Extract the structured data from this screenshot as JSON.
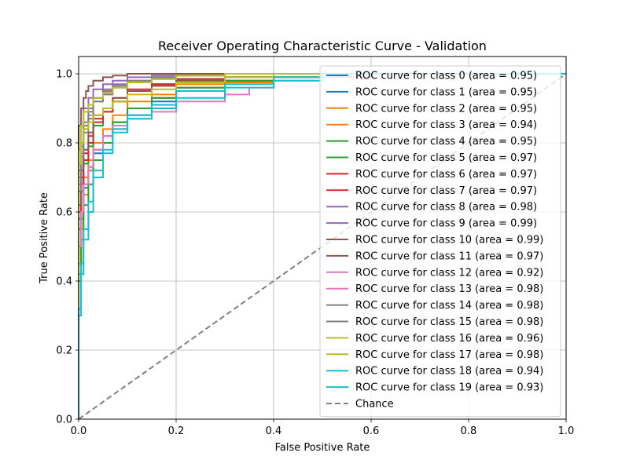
{
  "chart_data": {
    "type": "line",
    "title": "Receiver Operating Characteristic Curve - Validation",
    "xlabel": "False Positive Rate",
    "ylabel": "True Positive Rate",
    "xlim": [
      0.0,
      1.0
    ],
    "ylim": [
      0.0,
      1.05
    ],
    "x_ticks": [
      "0.0",
      "0.2",
      "0.4",
      "0.6",
      "0.8",
      "1.0"
    ],
    "y_ticks": [
      "0.0",
      "0.2",
      "0.4",
      "0.6",
      "0.8",
      "1.0"
    ],
    "grid": true,
    "legend_position": "top-right",
    "series": [
      {
        "name": "ROC curve for class 0 (area = 0.95)",
        "color": "#1f77b4",
        "dash": false,
        "x": [
          0,
          0,
          0.005,
          0.01,
          0.02,
          0.03,
          0.05,
          0.07,
          0.1,
          0.15,
          0.2,
          0.3,
          0.4,
          0.5,
          0.7,
          1.0
        ],
        "y": [
          0,
          0.3,
          0.5,
          0.6,
          0.68,
          0.73,
          0.78,
          0.82,
          0.86,
          0.9,
          0.93,
          0.96,
          0.98,
          0.99,
          1.0,
          1.0
        ]
      },
      {
        "name": "ROC curve for class 1 (area = 0.95)",
        "color": "#1f77b4",
        "dash": false,
        "x": [
          0,
          0,
          0.005,
          0.01,
          0.02,
          0.03,
          0.05,
          0.07,
          0.1,
          0.15,
          0.2,
          0.3,
          0.4,
          0.5,
          0.7,
          1.0
        ],
        "y": [
          0,
          0.25,
          0.45,
          0.58,
          0.67,
          0.72,
          0.77,
          0.8,
          0.84,
          0.88,
          0.92,
          0.96,
          0.98,
          0.99,
          1.0,
          1.0
        ]
      },
      {
        "name": "ROC curve for class 2 (area = 0.95)",
        "color": "#ff7f0e",
        "dash": false,
        "x": [
          0,
          0,
          0.005,
          0.01,
          0.02,
          0.03,
          0.05,
          0.07,
          0.1,
          0.15,
          0.2,
          0.3,
          0.4,
          0.5,
          0.7,
          1.0
        ],
        "y": [
          0,
          0.2,
          0.45,
          0.6,
          0.7,
          0.75,
          0.8,
          0.84,
          0.88,
          0.92,
          0.94,
          0.97,
          0.98,
          0.99,
          1.0,
          1.0
        ]
      },
      {
        "name": "ROC curve for class 3 (area = 0.94)",
        "color": "#ff7f0e",
        "dash": false,
        "x": [
          0,
          0,
          0.005,
          0.01,
          0.02,
          0.03,
          0.05,
          0.07,
          0.1,
          0.15,
          0.2,
          0.3,
          0.4,
          0.5,
          0.7,
          1.0
        ],
        "y": [
          0,
          0.18,
          0.42,
          0.55,
          0.65,
          0.72,
          0.78,
          0.82,
          0.86,
          0.9,
          0.93,
          0.96,
          0.975,
          0.99,
          1.0,
          1.0
        ]
      },
      {
        "name": "ROC curve for class 4 (area = 0.95)",
        "color": "#2ca02c",
        "dash": false,
        "x": [
          0,
          0,
          0.005,
          0.01,
          0.02,
          0.03,
          0.05,
          0.07,
          0.1,
          0.15,
          0.2,
          0.3,
          0.4,
          0.5,
          0.7,
          1.0
        ],
        "y": [
          0,
          0.22,
          0.4,
          0.52,
          0.62,
          0.68,
          0.75,
          0.8,
          0.86,
          0.9,
          0.93,
          0.96,
          0.98,
          0.99,
          1.0,
          1.0
        ]
      },
      {
        "name": "ROC curve for class 5 (area = 0.97)",
        "color": "#2ca02c",
        "dash": false,
        "x": [
          0,
          0,
          0.005,
          0.01,
          0.02,
          0.03,
          0.05,
          0.07,
          0.1,
          0.15,
          0.2,
          0.3,
          0.4,
          0.5,
          0.7,
          1.0
        ],
        "y": [
          0,
          0.35,
          0.55,
          0.66,
          0.74,
          0.79,
          0.85,
          0.89,
          0.92,
          0.95,
          0.97,
          0.985,
          0.99,
          1.0,
          1.0,
          1.0
        ]
      },
      {
        "name": "ROC curve for class 6 (area = 0.97)",
        "color": "#d62728",
        "dash": false,
        "x": [
          0,
          0,
          0.005,
          0.01,
          0.02,
          0.03,
          0.05,
          0.07,
          0.1,
          0.15,
          0.2,
          0.3,
          0.4,
          0.5,
          0.7,
          1.0
        ],
        "y": [
          0,
          0.4,
          0.6,
          0.7,
          0.77,
          0.82,
          0.87,
          0.9,
          0.93,
          0.955,
          0.97,
          0.985,
          0.99,
          1.0,
          1.0,
          1.0
        ]
      },
      {
        "name": "ROC curve for class 7 (area = 0.97)",
        "color": "#d62728",
        "dash": false,
        "x": [
          0,
          0,
          0.005,
          0.01,
          0.02,
          0.03,
          0.05,
          0.07,
          0.1,
          0.15,
          0.2,
          0.3,
          0.4,
          0.5,
          0.7,
          1.0
        ],
        "y": [
          0,
          0.38,
          0.58,
          0.68,
          0.75,
          0.8,
          0.86,
          0.89,
          0.92,
          0.95,
          0.965,
          0.98,
          0.99,
          1.0,
          1.0,
          1.0
        ]
      },
      {
        "name": "ROC curve for class 8 (area = 0.98)",
        "color": "#9467bd",
        "dash": false,
        "x": [
          0,
          0,
          0.005,
          0.01,
          0.02,
          0.03,
          0.05,
          0.07,
          0.1,
          0.15,
          0.2,
          0.3,
          0.4,
          0.5,
          0.7,
          1.0
        ],
        "y": [
          0,
          0.55,
          0.72,
          0.8,
          0.86,
          0.9,
          0.93,
          0.955,
          0.97,
          0.98,
          0.99,
          0.995,
          1.0,
          1.0,
          1.0,
          1.0
        ]
      },
      {
        "name": "ROC curve for class 9 (area = 0.99)",
        "color": "#9467bd",
        "dash": false,
        "x": [
          0,
          0,
          0.005,
          0.01,
          0.02,
          0.03,
          0.05,
          0.07,
          0.1,
          0.15,
          0.2,
          0.3,
          0.4,
          0.5,
          0.7,
          1.0
        ],
        "y": [
          0,
          0.6,
          0.78,
          0.85,
          0.9,
          0.93,
          0.955,
          0.97,
          0.98,
          0.99,
          0.995,
          1.0,
          1.0,
          1.0,
          1.0,
          1.0
        ]
      },
      {
        "name": "ROC curve for class 10 (area = 0.99)",
        "color": "#8c564b",
        "dash": false,
        "x": [
          0,
          0,
          0.005,
          0.01,
          0.015,
          0.02,
          0.03,
          0.05,
          0.07,
          0.1,
          0.15,
          0.2,
          0.3,
          0.5,
          0.7,
          1.0
        ],
        "y": [
          0,
          0.75,
          0.85,
          0.9,
          0.93,
          0.95,
          0.965,
          0.98,
          0.99,
          0.995,
          1.0,
          1.0,
          1.0,
          1.0,
          1.0,
          1.0
        ]
      },
      {
        "name": "ROC curve for class 11 (area = 0.97)",
        "color": "#8c564b",
        "dash": false,
        "x": [
          0,
          0,
          0.005,
          0.01,
          0.02,
          0.03,
          0.05,
          0.07,
          0.1,
          0.15,
          0.2,
          0.3,
          0.4,
          0.5,
          0.7,
          1.0
        ],
        "y": [
          0,
          0.45,
          0.62,
          0.72,
          0.78,
          0.83,
          0.88,
          0.9,
          0.93,
          0.95,
          0.965,
          0.98,
          0.99,
          1.0,
          1.0,
          1.0
        ]
      },
      {
        "name": "ROC curve for class 12 (area = 0.92)",
        "color": "#e377c2",
        "dash": false,
        "x": [
          0,
          0,
          0.005,
          0.01,
          0.02,
          0.03,
          0.05,
          0.07,
          0.1,
          0.15,
          0.2,
          0.3,
          0.35,
          0.4,
          0.5,
          0.6,
          0.7,
          1.0
        ],
        "y": [
          0,
          0.3,
          0.5,
          0.6,
          0.68,
          0.73,
          0.78,
          0.82,
          0.85,
          0.87,
          0.89,
          0.92,
          0.94,
          0.96,
          0.98,
          0.99,
          1.0,
          1.0
        ]
      },
      {
        "name": "ROC curve for class 13 (area = 0.98)",
        "color": "#e377c2",
        "dash": false,
        "x": [
          0,
          0,
          0.005,
          0.01,
          0.02,
          0.03,
          0.05,
          0.07,
          0.1,
          0.15,
          0.2,
          0.3,
          0.4,
          0.5,
          0.7,
          1.0
        ],
        "y": [
          0,
          0.5,
          0.68,
          0.77,
          0.84,
          0.88,
          0.92,
          0.945,
          0.96,
          0.975,
          0.985,
          0.995,
          1.0,
          1.0,
          1.0,
          1.0
        ]
      },
      {
        "name": "ROC curve for class 14 (area = 0.98)",
        "color": "#7f7f7f",
        "dash": false,
        "x": [
          0,
          0,
          0.005,
          0.01,
          0.02,
          0.03,
          0.05,
          0.07,
          0.1,
          0.15,
          0.2,
          0.3,
          0.4,
          0.5,
          0.7,
          1.0
        ],
        "y": [
          0,
          0.52,
          0.7,
          0.79,
          0.85,
          0.89,
          0.93,
          0.95,
          0.965,
          0.98,
          0.99,
          0.995,
          1.0,
          1.0,
          1.0,
          1.0
        ]
      },
      {
        "name": "ROC curve for class 15 (area = 0.98)",
        "color": "#7f7f7f",
        "dash": false,
        "x": [
          0,
          0,
          0.005,
          0.01,
          0.02,
          0.03,
          0.05,
          0.07,
          0.1,
          0.15,
          0.2,
          0.3,
          0.4,
          0.5,
          0.7,
          1.0
        ],
        "y": [
          0,
          0.48,
          0.66,
          0.76,
          0.83,
          0.87,
          0.92,
          0.94,
          0.96,
          0.975,
          0.985,
          0.995,
          1.0,
          1.0,
          1.0,
          1.0
        ]
      },
      {
        "name": "ROC curve for class 16 (area = 0.96)",
        "color": "#bcbd22",
        "dash": false,
        "x": [
          0,
          0,
          0.005,
          0.01,
          0.02,
          0.03,
          0.05,
          0.07,
          0.1,
          0.15,
          0.2,
          0.3,
          0.4,
          0.5,
          0.7,
          1.0
        ],
        "y": [
          0,
          0.6,
          0.74,
          0.8,
          0.84,
          0.86,
          0.88,
          0.9,
          0.92,
          0.94,
          0.955,
          0.975,
          0.99,
          1.0,
          1.0,
          1.0
        ]
      },
      {
        "name": "ROC curve for class 17 (area = 0.98)",
        "color": "#bcbd22",
        "dash": false,
        "x": [
          0,
          0,
          0.005,
          0.01,
          0.02,
          0.03,
          0.05,
          0.07,
          0.1,
          0.15,
          0.2,
          0.3,
          0.4,
          0.5,
          0.7,
          1.0
        ],
        "y": [
          0,
          0.62,
          0.78,
          0.85,
          0.89,
          0.91,
          0.93,
          0.945,
          0.96,
          0.975,
          0.985,
          0.995,
          1.0,
          1.0,
          1.0,
          1.0
        ]
      },
      {
        "name": "ROC curve for class 18 (area = 0.94)",
        "color": "#17becf",
        "dash": false,
        "x": [
          0,
          0,
          0.005,
          0.01,
          0.02,
          0.03,
          0.05,
          0.07,
          0.1,
          0.15,
          0.2,
          0.3,
          0.4,
          0.5,
          0.7,
          1.0
        ],
        "y": [
          0,
          0.15,
          0.32,
          0.45,
          0.55,
          0.63,
          0.72,
          0.78,
          0.84,
          0.88,
          0.91,
          0.95,
          0.97,
          0.99,
          1.0,
          1.0
        ]
      },
      {
        "name": "ROC curve for class 19 (area = 0.93)",
        "color": "#17becf",
        "dash": false,
        "x": [
          0,
          0,
          0.005,
          0.01,
          0.02,
          0.03,
          0.05,
          0.07,
          0.1,
          0.15,
          0.2,
          0.3,
          0.4,
          0.5,
          0.7,
          1.0
        ],
        "y": [
          0,
          0.12,
          0.3,
          0.42,
          0.52,
          0.6,
          0.7,
          0.77,
          0.83,
          0.87,
          0.9,
          0.93,
          0.96,
          0.98,
          1.0,
          1.0
        ]
      },
      {
        "name": "Chance",
        "color": "#808080",
        "dash": true,
        "x": [
          0,
          1
        ],
        "y": [
          0,
          1
        ]
      }
    ]
  }
}
